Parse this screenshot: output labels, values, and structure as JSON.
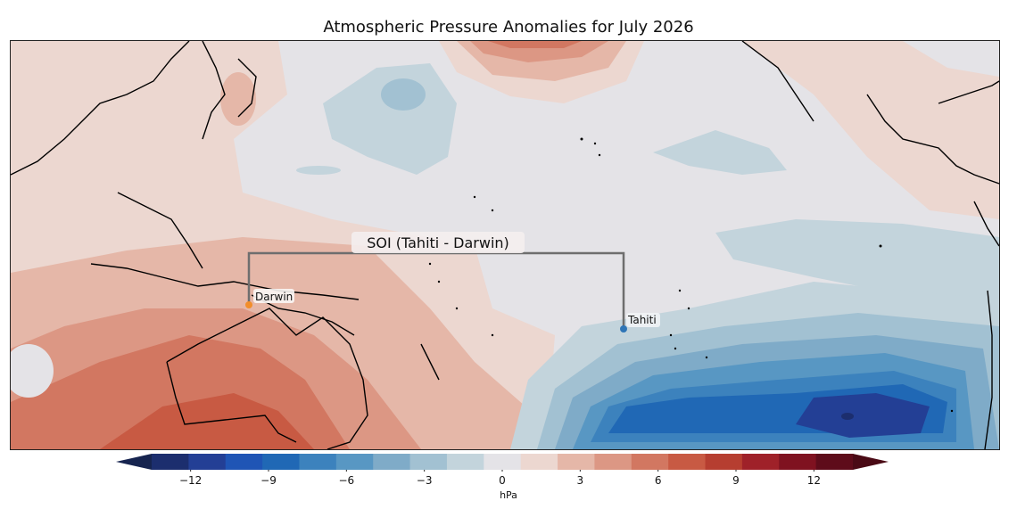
{
  "title": "Atmospheric Pressure Anomalies for July 2026",
  "stations": [
    {
      "name": "Darwin",
      "color": "#f28e2b"
    },
    {
      "name": "Tahiti",
      "color": "#2e75b6"
    }
  ],
  "soi_label": "SOI (Tahiti - Darwin)",
  "colorbar": {
    "unit": "hPa",
    "ticks": [
      "−12",
      "−9",
      "−6",
      "−3",
      "0",
      "3",
      "6",
      "9",
      "12"
    ],
    "levels": [
      -13.5,
      -12,
      -10.5,
      -9,
      -7.5,
      -6,
      -4.5,
      -3,
      -1.5,
      0,
      1.5,
      3,
      4.5,
      6,
      7.5,
      9,
      10.5,
      12,
      13.5
    ],
    "colors": [
      "#1c2e6e",
      "#233f95",
      "#1f55b5",
      "#2068b5",
      "#3c82bd",
      "#5897c3",
      "#7fabc8",
      "#a2c1d2",
      "#c3d4dc",
      "#e4e3e7",
      "#ecd7d0",
      "#e5b7a8",
      "#dc9784",
      "#d27761",
      "#c85a43",
      "#b63e30",
      "#9f2129",
      "#7f1220",
      "#5e0c1a"
    ],
    "under_color": "#16244f",
    "over_color": "#4a0a15"
  }
}
